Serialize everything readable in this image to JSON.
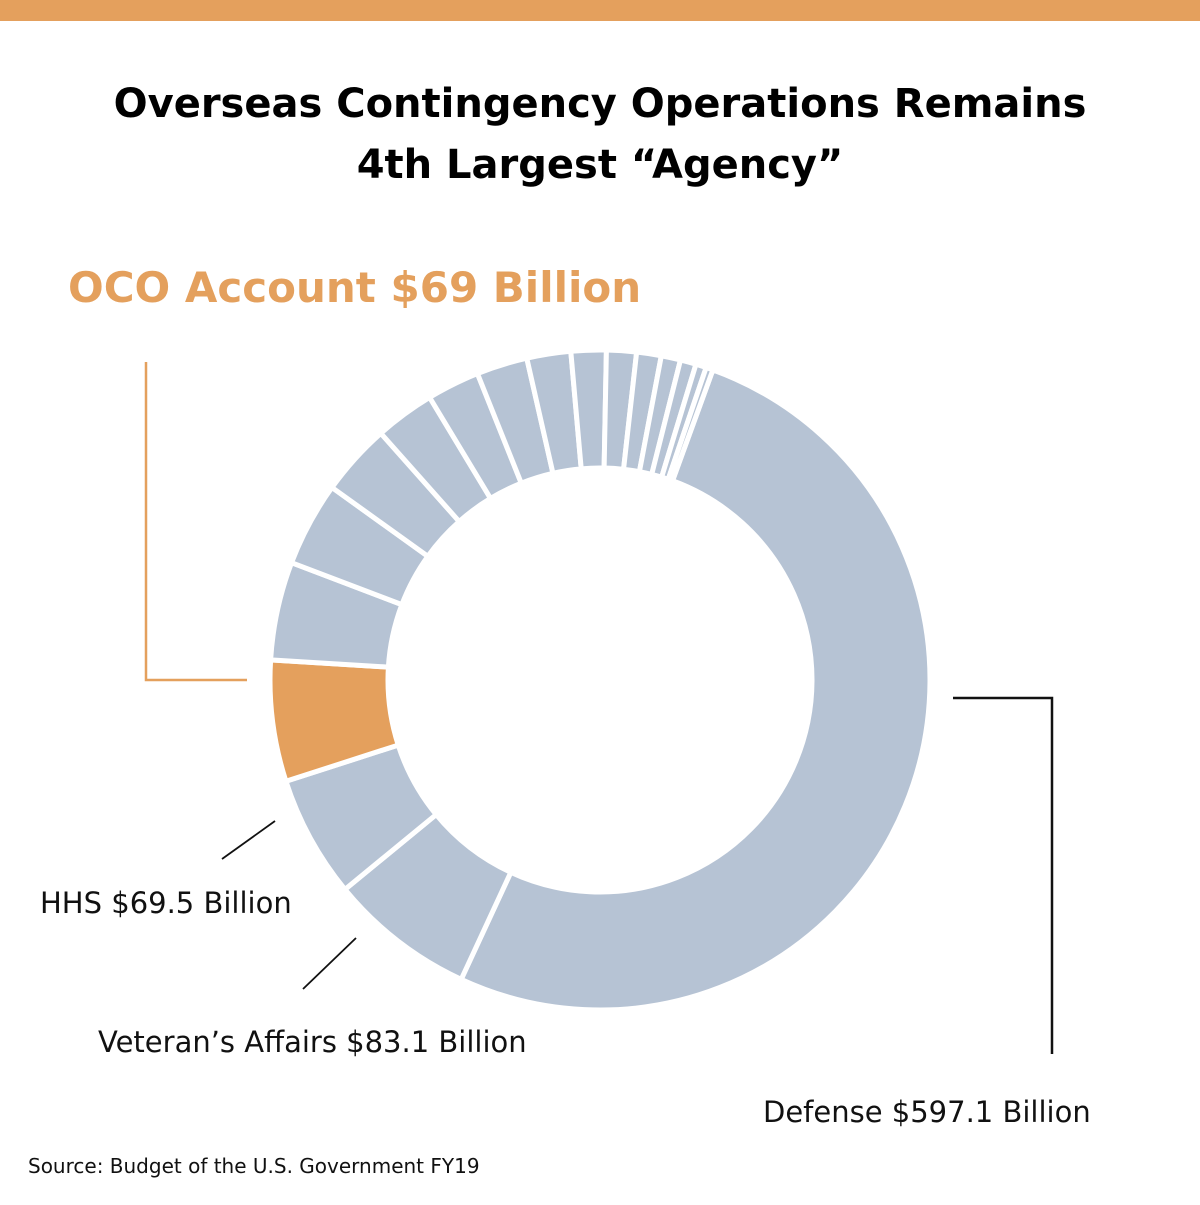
{
  "title_line1": "Overseas Contingency Operations Remains",
  "title_line2": "4th Largest “Agency”",
  "callouts": {
    "oco": "OCO Account $69 Billion",
    "hhs": "HHS $69.5 Billion",
    "va": "Veteran’s Affairs $83.1 Billion",
    "defense": "Defense $597.1 Billion"
  },
  "source": "Source: Budget of the U.S. Government FY19",
  "colors": {
    "accent": "#E4A05D",
    "slice": "#B6C3D4",
    "highlight": "#E4A05D",
    "text": "#000000"
  },
  "chart_data": {
    "type": "pie",
    "style": "donut",
    "title": "Overseas Contingency Operations Remains 4th Largest “Agency”",
    "slices": [
      {
        "label": "Defense $597.1 Billion",
        "value": 597.1,
        "highlight": false
      },
      {
        "label": "Veteran’s Affairs $83.1 Billion",
        "value": 83.1,
        "highlight": false
      },
      {
        "label": "HHS $69.5 Billion",
        "value": 69.5,
        "highlight": false
      },
      {
        "label": "OCO Account $69 Billion",
        "value": 69,
        "highlight": true
      },
      {
        "label": "",
        "value": 56,
        "highlight": false
      },
      {
        "label": "",
        "value": 48,
        "highlight": false
      },
      {
        "label": "",
        "value": 41,
        "highlight": false
      },
      {
        "label": "",
        "value": 34,
        "highlight": false
      },
      {
        "label": "",
        "value": 30,
        "highlight": false
      },
      {
        "label": "",
        "value": 29,
        "highlight": false
      },
      {
        "label": "",
        "value": 25,
        "highlight": false
      },
      {
        "label": "",
        "value": 20,
        "highlight": false
      },
      {
        "label": "",
        "value": 17,
        "highlight": false
      },
      {
        "label": "",
        "value": 14,
        "highlight": false
      },
      {
        "label": "",
        "value": 11,
        "highlight": false
      },
      {
        "label": "",
        "value": 9,
        "highlight": false
      },
      {
        "label": "",
        "value": 6,
        "highlight": false
      },
      {
        "label": "",
        "value": 4,
        "highlight": false
      }
    ]
  }
}
